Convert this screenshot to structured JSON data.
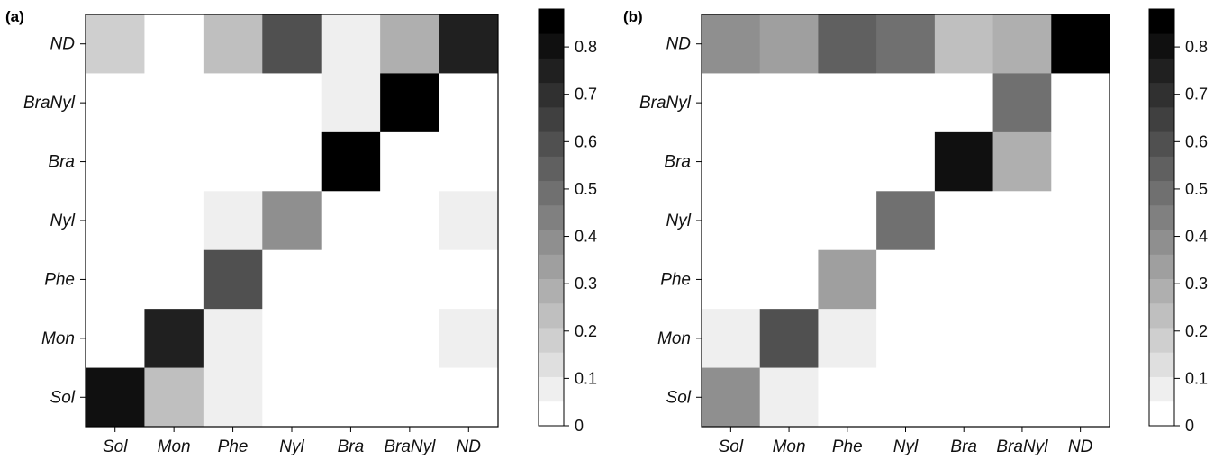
{
  "chart_data": [
    {
      "type": "heatmap",
      "panel_label": "(a)",
      "x_categories": [
        "Sol",
        "Mon",
        "Phe",
        "Nyl",
        "Bra",
        "BraNyl",
        "ND"
      ],
      "y_categories": [
        "ND",
        "BraNyl",
        "Bra",
        "Nyl",
        "Phe",
        "Mon",
        "Sol"
      ],
      "values": [
        [
          0.2,
          0.05,
          0.25,
          0.6,
          0.1,
          0.3,
          0.75
        ],
        [
          0.05,
          0.0,
          0.0,
          0.05,
          0.1,
          0.85,
          0.0
        ],
        [
          0.05,
          0.0,
          0.05,
          0.0,
          0.85,
          0.0,
          0.05
        ],
        [
          0.0,
          0.05,
          0.1,
          0.4,
          0.0,
          0.0,
          0.1
        ],
        [
          0.0,
          0.0,
          0.6,
          0.05,
          0.05,
          0.0,
          0.05
        ],
        [
          0.05,
          0.75,
          0.1,
          0.0,
          0.0,
          0.0,
          0.1
        ],
        [
          0.8,
          0.25,
          0.1,
          0.05,
          0.0,
          0.0,
          0.05
        ]
      ],
      "colorbar": {
        "range": [
          0,
          0.88
        ],
        "levels": 17,
        "tick_values": [
          0,
          0.1,
          0.2,
          0.3,
          0.4,
          0.5,
          0.6,
          0.7,
          0.8
        ],
        "tick_labels": [
          "0",
          "0.1",
          "0.2",
          "0.3",
          "0.4",
          "0.5",
          "0.6",
          "0.7",
          "0.8"
        ],
        "colormap": "white-to-black"
      }
    },
    {
      "type": "heatmap",
      "panel_label": "(b)",
      "x_categories": [
        "Sol",
        "Mon",
        "Phe",
        "Nyl",
        "Bra",
        "BraNyl",
        "ND"
      ],
      "y_categories": [
        "ND",
        "BraNyl",
        "Bra",
        "Nyl",
        "Phe",
        "Mon",
        "Sol"
      ],
      "values": [
        [
          0.4,
          0.35,
          0.55,
          0.5,
          0.25,
          0.3,
          0.85
        ],
        [
          0.0,
          0.0,
          0.0,
          0.0,
          0.0,
          0.5,
          0.0
        ],
        [
          0.05,
          0.0,
          0.0,
          0.0,
          0.8,
          0.3,
          0.0
        ],
        [
          0.05,
          0.0,
          0.05,
          0.5,
          0.0,
          0.0,
          0.05
        ],
        [
          0.05,
          0.0,
          0.35,
          0.0,
          0.0,
          0.0,
          0.05
        ],
        [
          0.1,
          0.6,
          0.1,
          0.0,
          0.05,
          0.0,
          0.05
        ],
        [
          0.4,
          0.1,
          0.05,
          0.05,
          0.0,
          0.0,
          0.05
        ]
      ],
      "colorbar": {
        "range": [
          0,
          0.88
        ],
        "levels": 17,
        "tick_values": [
          0,
          0.1,
          0.2,
          0.3,
          0.4,
          0.5,
          0.6,
          0.7,
          0.8
        ],
        "tick_labels": [
          "0",
          "0.1",
          "0.2",
          "0.3",
          "0.4",
          "0.5",
          "0.6",
          "0.7",
          "0.8"
        ],
        "colormap": "white-to-black"
      }
    }
  ]
}
